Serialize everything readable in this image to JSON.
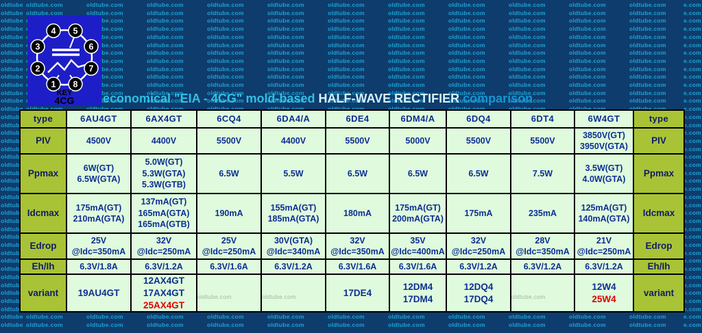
{
  "page": {
    "site_watermark": "oldtube.com",
    "background_color": "#0e3c6d",
    "watermark_color": "#1fa3d4"
  },
  "logo": {
    "pins": [
      "1",
      "2",
      "3",
      "4",
      "5",
      "6",
      "7",
      "8"
    ],
    "key_label": "KEY",
    "base_label": "4CG",
    "background_color": "#1e1ec8"
  },
  "title": {
    "segment_cyan": "economical \"EIA - 4CG\" mold-based ",
    "segment_white": "HALF-WAVE RECTIFIER ",
    "segment_blue": "comparison"
  },
  "table": {
    "corner_label": "type",
    "columns": [
      "6AU4GT",
      "6AX4GT",
      "6CQ4",
      "6DA4/A",
      "6DE4",
      "6DM4/A",
      "6DQ4",
      "6DT4",
      "6W4GT"
    ],
    "rows": [
      {
        "label": "PIV",
        "cells": [
          [
            "4500V"
          ],
          [
            "4400V"
          ],
          [
            "5500V"
          ],
          [
            "4400V"
          ],
          [
            "5500V"
          ],
          [
            "5000V"
          ],
          [
            "5500V"
          ],
          [
            "5500V"
          ],
          [
            "3850V(GT)",
            "3950V(GTA)"
          ]
        ]
      },
      {
        "label": "Ppmax",
        "cells": [
          [
            "6W(GT)",
            "6.5W(GTA)"
          ],
          [
            "5.0W(GT)",
            "5.3W(GTA)",
            "5.3W(GTB)"
          ],
          [
            "6.5W"
          ],
          [
            "5.5W"
          ],
          [
            "6.5W"
          ],
          [
            "6.5W"
          ],
          [
            "6.5W"
          ],
          [
            "7.5W"
          ],
          [
            "3.5W(GT)",
            "4.0W(GTA)"
          ]
        ]
      },
      {
        "label": "Idcmax",
        "cells": [
          [
            "175mA(GT)",
            "210mA(GTA)"
          ],
          [
            "137mA(GT)",
            "165mA(GTA)",
            "165mA(GTB)"
          ],
          [
            "190mA"
          ],
          [
            "155mA(GT)",
            "185mA(GTA)"
          ],
          [
            "180mA"
          ],
          [
            "175mA(GT)",
            "200mA(GTA)"
          ],
          [
            "175mA"
          ],
          [
            "235mA"
          ],
          [
            "125mA(GT)",
            "140mA(GTA)"
          ]
        ]
      },
      {
        "label": "Edrop",
        "cells": [
          [
            "25V",
            "@Idc=350mA"
          ],
          [
            "32V",
            "@Idc=250mA"
          ],
          [
            "25V",
            "@Idc=250mA"
          ],
          [
            "30V(GTA)",
            "@Idc=340mA"
          ],
          [
            "32V",
            "@Idc=350mA"
          ],
          [
            "35V",
            "@Idc=400mA"
          ],
          [
            "32V",
            "@Idc=250mA"
          ],
          [
            "28V",
            "@Idc=350mA"
          ],
          [
            "21V",
            "@Idc=250mA"
          ]
        ]
      },
      {
        "label": "Eh/Ih",
        "cells": [
          [
            "6.3V/1.8A"
          ],
          [
            "6.3V/1.2A"
          ],
          [
            "6.3V/1.6A"
          ],
          [
            "6.3V/1.2A"
          ],
          [
            "6.3V/1.6A"
          ],
          [
            "6.3V/1.6A"
          ],
          [
            "6.3V/1.2A"
          ],
          [
            "6.3V/1.2A"
          ],
          [
            "6.3V/1.2A"
          ]
        ]
      },
      {
        "label": "variant",
        "cells": [
          [
            "19AU4GT"
          ],
          [
            "12AX4GT",
            "17AX4GT",
            {
              "t": "25AX4GT",
              "c": "red"
            }
          ],
          [
            {
              "t": "oldtube.com",
              "c": "wm"
            }
          ],
          [
            {
              "t": "oldtube.com",
              "c": "wm"
            }
          ],
          [
            "17DE4"
          ],
          [
            "12DM4",
            "17DM4"
          ],
          [
            "12DQ4",
            "17DQ4"
          ],
          [
            {
              "t": "oldtube.com",
              "c": "wm"
            }
          ],
          [
            "12W4",
            {
              "t": "25W4",
              "c": "red"
            }
          ]
        ]
      }
    ]
  },
  "colors": {
    "accent_red": "#e00000",
    "cell_text_blue": "#0d2f92",
    "label_cell_bg": "#a9c336",
    "data_cell_bg": "#dffadd",
    "title_cyan": "#2ec0e4",
    "title_white": "#d5f2f9",
    "title_blue": "#1596d2"
  }
}
